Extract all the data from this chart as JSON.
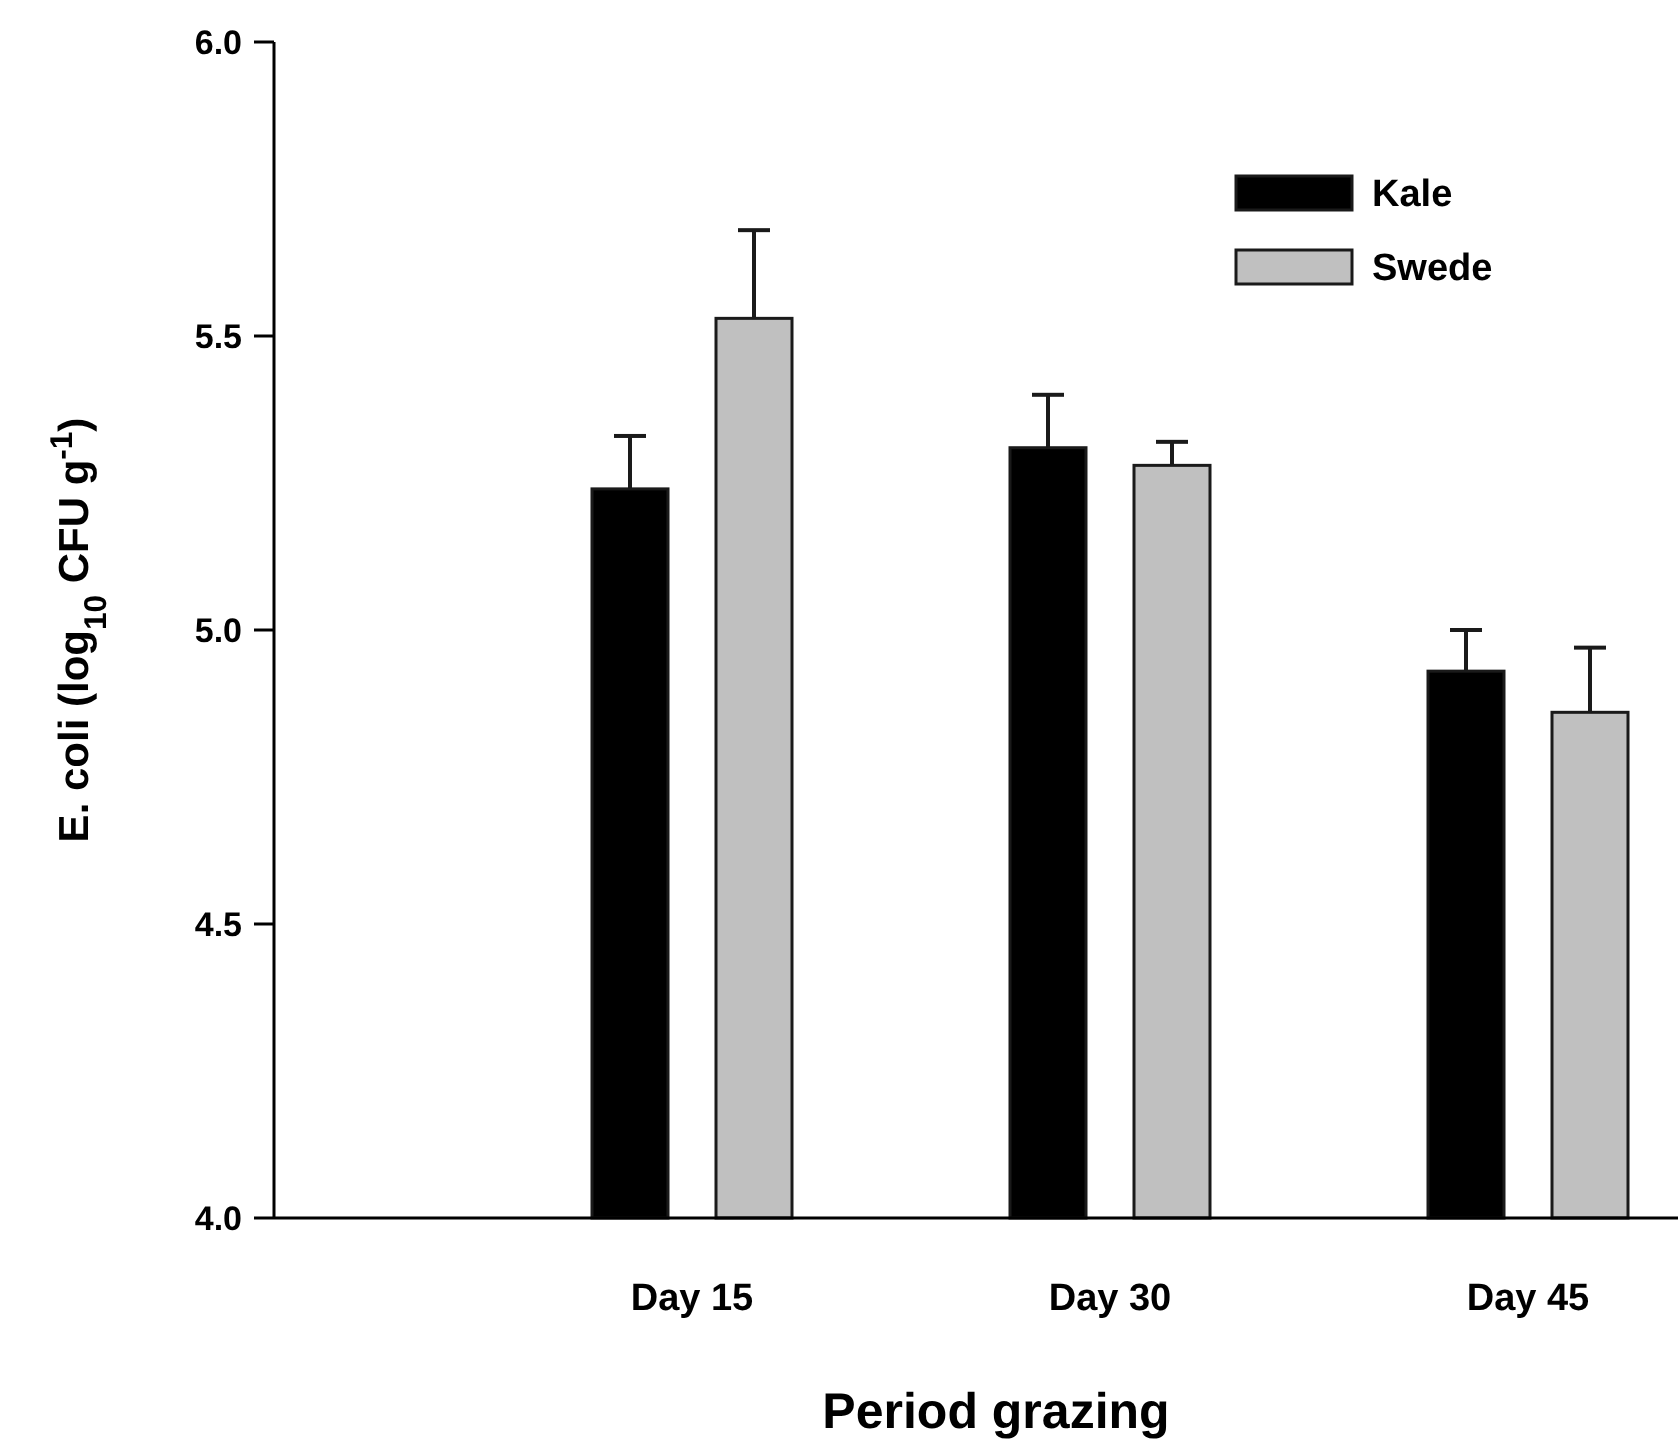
{
  "chart_data": {
    "type": "bar",
    "xlabel": "Period grazing",
    "ylabel": "E. coli (log$_{10}$ CFU g$^{-1}$)",
    "categories": [
      null,
      "Day 15",
      "Day 30",
      "Day 45"
    ],
    "series": [
      {
        "name": "Kale",
        "color": "#000000",
        "values": [
          null,
          5.24,
          5.31,
          4.93
        ],
        "errors": [
          null,
          [
            5.24,
            5.33
          ],
          [
            5.31,
            5.4
          ],
          [
            4.93,
            5.0
          ]
        ]
      },
      {
        "name": "Swede",
        "color": "#c0c0c0",
        "values": [
          null,
          5.53,
          5.28,
          4.86
        ],
        "errors": [
          null,
          [
            5.53,
            5.68
          ],
          [
            5.28,
            5.32
          ],
          [
            4.86,
            4.97
          ]
        ]
      }
    ],
    "ylim": [
      4.0,
      6.0
    ],
    "yticks": [
      {
        "value": 4.0,
        "label": "4.0"
      },
      {
        "value": 4.5,
        "label": "4.5"
      },
      {
        "value": 5.0,
        "label": "5.0"
      },
      {
        "value": 5.5,
        "label": "5.5"
      },
      {
        "value": 6.0,
        "label": "6.0"
      }
    ],
    "legend": "top right",
    "grid": false
  }
}
